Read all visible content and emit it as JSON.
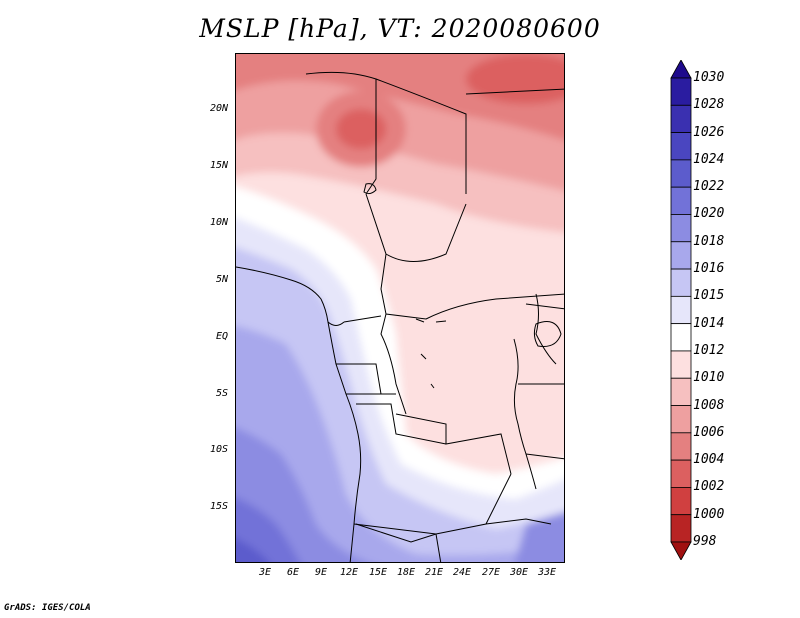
{
  "title": "MSLP [hPa], VT: 2020080600",
  "credit": "GrADS: IGES/COLA",
  "map": {
    "variable": "mean sea level pressure",
    "units": "hPa",
    "lon_range": [
      0,
      35
    ],
    "lat_range": [
      -20,
      24.5
    ],
    "lat_ticks": [
      "20N",
      "15N",
      "10N",
      "5N",
      "EQ",
      "5S",
      "10S",
      "15S"
    ],
    "lat_tick_values": [
      20,
      15,
      10,
      5,
      0,
      -5,
      -10,
      -15
    ],
    "lon_ticks": [
      "3E",
      "6E",
      "9E",
      "12E",
      "15E",
      "18E",
      "21E",
      "24E",
      "27E",
      "30E",
      "33E"
    ],
    "lon_tick_values": [
      3,
      6,
      9,
      12,
      15,
      18,
      21,
      24,
      27,
      30,
      33
    ],
    "features": [
      "country-borders",
      "coastline",
      "lake-outlines"
    ],
    "pressure_pattern": {
      "low_center_hpa": 1004,
      "low_center_location": "northern Chad / Sahara",
      "high_region_hpa": 1022,
      "high_region_location": "southwest Atlantic / southern Africa coast"
    }
  },
  "colorbar": {
    "labels": [
      "1030",
      "1028",
      "1026",
      "1024",
      "1022",
      "1020",
      "1018",
      "1016",
      "1015",
      "1014",
      "1012",
      "1010",
      "1008",
      "1006",
      "1004",
      "1002",
      "1000",
      "998"
    ],
    "colors": [
      "#1e0a8c",
      "#2a1ca0",
      "#3a30b0",
      "#4a46c0",
      "#5c5ccc",
      "#7272d8",
      "#8c8ce2",
      "#a8a8ec",
      "#c6c6f4",
      "#e6e6fa",
      "#ffffff",
      "#fde0e0",
      "#f6c0c0",
      "#eea0a0",
      "#e48080",
      "#dc6060",
      "#d04040",
      "#b82424",
      "#a01010"
    ]
  }
}
